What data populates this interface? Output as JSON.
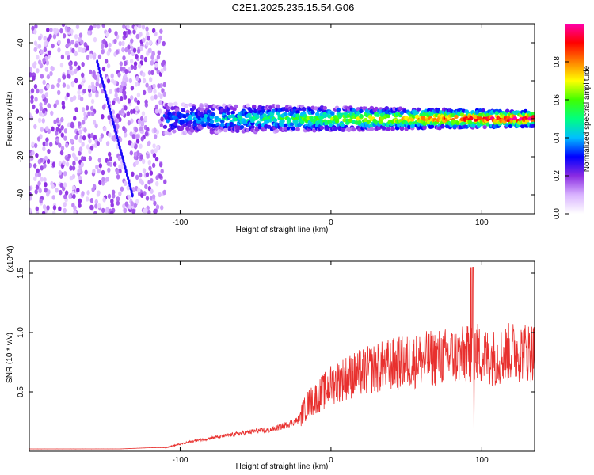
{
  "chart_data": [
    {
      "type": "heatmap",
      "title": "C2E1.2025.235.15.54.G06",
      "xlabel": "Height of straight line (km)",
      "ylabel": "Frequency (Hz)",
      "xlim": [
        -200,
        135
      ],
      "ylim": [
        -50,
        50
      ],
      "xticks": [
        -100,
        0,
        100
      ],
      "yticks": [
        -40,
        -20,
        0,
        20,
        40
      ],
      "colorbar": {
        "label": "Normalized spectral amplitude",
        "range": [
          0,
          1
        ],
        "ticks": [
          "0.0",
          "0.2",
          "0.4",
          "0.6",
          "0.8"
        ],
        "colors": [
          "#ffffff",
          "#d9b3ff",
          "#8a2be2",
          "#0000ff",
          "#00bfff",
          "#00ff80",
          "#40ff00",
          "#ffff00",
          "#ff8000",
          "#ff0000",
          "#ff00aa"
        ]
      },
      "regions": [
        {
          "name": "scatter-noise",
          "x_range": [
            -200,
            -110
          ],
          "freq_range": [
            -50,
            50
          ],
          "amplitude_range": [
            0.05,
            0.2
          ]
        },
        {
          "name": "signal-band",
          "x_range": [
            -110,
            135
          ],
          "center_freq": 0,
          "half_width_hz": 5,
          "peak_amplitude": 1.0
        }
      ]
    },
    {
      "type": "line",
      "xlabel": "Height of straight line (km)",
      "ylabel": "SNR (10 * v/v)",
      "scale_label": "(x10^4)",
      "xlim": [
        -200,
        135
      ],
      "ylim": [
        0,
        1.6
      ],
      "xticks": [
        -100,
        0,
        100
      ],
      "yticks": [
        "0.5",
        "1.0",
        "1.5"
      ],
      "series": [
        {
          "name": "SNR",
          "color": "#e8302e",
          "x": [
            -200,
            -180,
            -160,
            -140,
            -120,
            -110,
            -100,
            -90,
            -80,
            -70,
            -60,
            -50,
            -40,
            -30,
            -22,
            -18,
            -15,
            -10,
            -5,
            0,
            10,
            20,
            30,
            40,
            50,
            60,
            70,
            80,
            90,
            93,
            95,
            100,
            110,
            120,
            135
          ],
          "y": [
            0.02,
            0.02,
            0.02,
            0.02,
            0.03,
            0.03,
            0.06,
            0.09,
            0.11,
            0.13,
            0.15,
            0.17,
            0.18,
            0.22,
            0.26,
            0.34,
            0.4,
            0.45,
            0.5,
            0.56,
            0.62,
            0.66,
            0.7,
            0.73,
            0.75,
            0.77,
            0.79,
            0.8,
            0.81,
            0.82,
            0.86,
            0.8,
            0.79,
            0.84,
            0.84
          ]
        }
      ]
    }
  ]
}
